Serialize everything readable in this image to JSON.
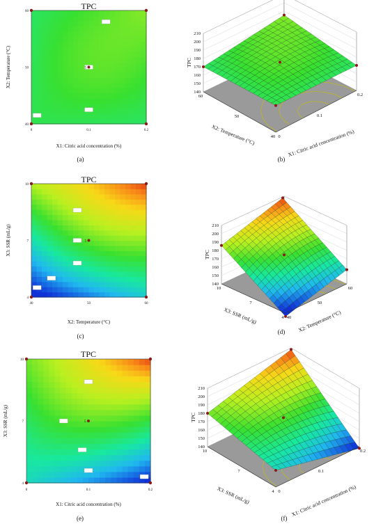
{
  "chart_data": [
    {
      "id": "a",
      "type": "heatmap",
      "panel_label": "(a)",
      "title": "TPC",
      "xlabel": "X1: Citric acid concentration (%)",
      "ylabel": "X2: Temperature (°C)",
      "x_ticks": [
        "0",
        "0.1",
        "0.2"
      ],
      "y_ticks": [
        "40",
        "50",
        "60"
      ],
      "xlim": [
        0,
        0.2
      ],
      "ylim": [
        40,
        60
      ],
      "scale": [
        140,
        210
      ],
      "corners": {
        "x0y0": 172,
        "x1y0": 170,
        "x0y1": 170,
        "x1y1": 182,
        "mid": 178
      },
      "contour_labels": [
        {
          "x": 0.01,
          "y": 41.5
        },
        {
          "x": 0.1,
          "y": 42.5
        },
        {
          "x": 0.1,
          "y": 50
        },
        {
          "x": 0.13,
          "y": 58
        }
      ],
      "center_point": {
        "x": 0.1,
        "y": 50,
        "label": "5"
      }
    },
    {
      "id": "b",
      "type": "surface",
      "panel_label": "(b)",
      "zlabel": "TPC",
      "xlabel": "X1: Citric acid concentration (%)",
      "ylabel": "X2: Temperature (°C)",
      "x_ticks": [
        "0",
        "0.1",
        "0.2"
      ],
      "y_ticks": [
        "40",
        "50",
        "60"
      ],
      "z_ticks": [
        "140",
        "150",
        "160",
        "170",
        "180",
        "190",
        "200",
        "210"
      ],
      "zlim": [
        140,
        210
      ],
      "corners": {
        "x0y0": 172,
        "x1y0": 170,
        "x0y1": 170,
        "x1y1": 182,
        "mid": 178
      }
    },
    {
      "id": "c",
      "type": "heatmap",
      "panel_label": "(c)",
      "title": "TPC",
      "xlabel": "X2: Temperature (°C)",
      "ylabel": "X3: SSR (mL/g)",
      "x_ticks": [
        "40",
        "50",
        "60"
      ],
      "y_ticks": [
        "4",
        "7",
        "10"
      ],
      "xlim": [
        40,
        60
      ],
      "ylim": [
        4,
        10
      ],
      "scale": [
        140,
        210
      ],
      "corners": {
        "x0y0": 136,
        "x1y0": 157,
        "x0y1": 186,
        "x1y1": 208,
        "mid": 178
      },
      "contour_labels": [
        {
          "x": 41,
          "y": 4.5
        },
        {
          "x": 43.5,
          "y": 5
        },
        {
          "x": 48,
          "y": 5.8
        },
        {
          "x": 48,
          "y": 7
        },
        {
          "x": 48,
          "y": 8.6
        }
      ],
      "center_point": {
        "x": 50,
        "y": 7,
        "label": "5"
      }
    },
    {
      "id": "d",
      "type": "surface",
      "panel_label": "(d)",
      "zlabel": "TPC",
      "xlabel": "X2: Temperature (°C)",
      "ylabel": "X3: SSR (mL/g)",
      "x_ticks": [
        "40",
        "50",
        "60"
      ],
      "y_ticks": [
        "4",
        "7",
        "10"
      ],
      "z_ticks": [
        "140",
        "150",
        "160",
        "170",
        "180",
        "190",
        "200",
        "210"
      ],
      "zlim": [
        140,
        210
      ],
      "corners": {
        "x0y0": 136,
        "x1y0": 157,
        "x0y1": 186,
        "x1y1": 208,
        "mid": 178
      }
    },
    {
      "id": "e",
      "type": "heatmap",
      "panel_label": "(e)",
      "title": "TPC",
      "xlabel": "X1: Citric acid concentration (%)",
      "ylabel": "X3: SSR (mL/g)",
      "x_ticks": [
        "0",
        "0.1",
        "0.2"
      ],
      "y_ticks": [
        "4",
        "7",
        "10"
      ],
      "xlim": [
        0,
        0.2
      ],
      "ylim": [
        4,
        10
      ],
      "scale": [
        140,
        210
      ],
      "corners": {
        "x0y0": 160,
        "x1y0": 138,
        "x0y1": 180,
        "x1y1": 208,
        "mid": 178
      },
      "contour_labels": [
        {
          "x": 0.19,
          "y": 4.3
        },
        {
          "x": 0.1,
          "y": 4.6
        },
        {
          "x": 0.09,
          "y": 5.6
        },
        {
          "x": 0.06,
          "y": 7
        },
        {
          "x": 0.1,
          "y": 8.9
        }
      ],
      "center_point": {
        "x": 0.1,
        "y": 7,
        "label": "5"
      }
    },
    {
      "id": "f",
      "type": "surface",
      "panel_label": "(f)",
      "zlabel": "TPC",
      "xlabel": "X1: Citric acid concentration (%)",
      "ylabel": "X3: SSR (mL/g)",
      "x_ticks": [
        "0",
        "0.1",
        "0.2"
      ],
      "y_ticks": [
        "4",
        "7",
        "10"
      ],
      "z_ticks": [
        "140",
        "150",
        "160",
        "170",
        "180",
        "190",
        "200",
        "210"
      ],
      "zlim": [
        140,
        210
      ],
      "corners": {
        "x0y0": 160,
        "x1y0": 138,
        "x0y1": 180,
        "x1y1": 208,
        "mid": 178
      }
    }
  ]
}
